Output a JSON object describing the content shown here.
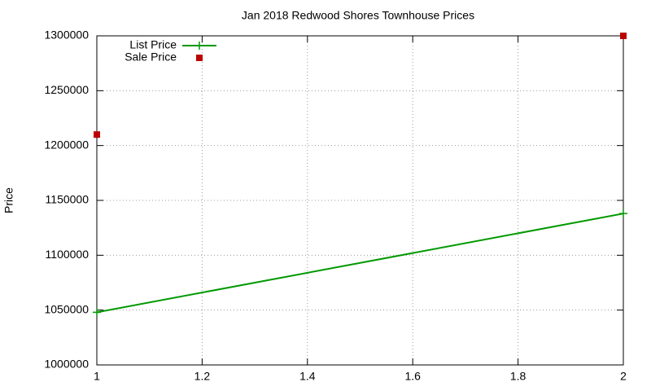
{
  "chart_data": {
    "type": "line",
    "title": "Jan 2018 Redwood Shores Townhouse Prices",
    "y_label": "Price",
    "x": [
      1,
      2
    ],
    "series": [
      {
        "name": "List Price",
        "color": "#009900",
        "style": "linespoints",
        "values": [
          1048000,
          1138000
        ]
      },
      {
        "name": "Sale Price",
        "color": "#bb0000",
        "style": "points",
        "values": [
          1210000,
          1300000
        ]
      }
    ],
    "xlim": [
      1,
      2
    ],
    "xticks": [
      1,
      1.2,
      1.4,
      1.6,
      1.8,
      2
    ],
    "ylim": [
      1000000,
      1300000
    ],
    "yticks": [
      1000000,
      1050000,
      1100000,
      1150000,
      1200000,
      1250000,
      1300000
    ],
    "grid": true,
    "legend": "top-left"
  }
}
